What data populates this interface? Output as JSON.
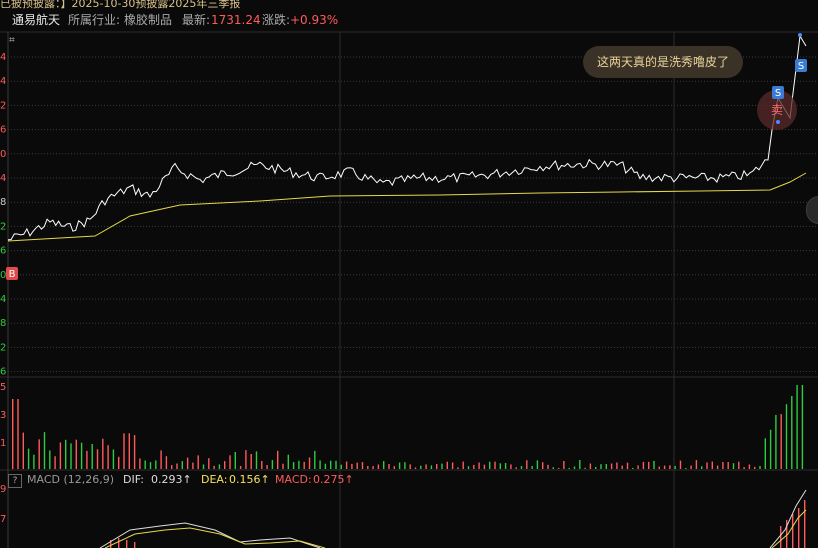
{
  "banner": "已披预披露：】2025-10-30预披露2025年三季报",
  "stock": {
    "name": "通易航天",
    "industry_label": "所属行业:",
    "industry": "橡胶制品",
    "latest_label": "最新:",
    "latest": "1731.24",
    "change_label": "涨跌:",
    "change": "+0.93%"
  },
  "price_axis_labels": [
    "4",
    "4",
    "2",
    "6",
    "0",
    "4",
    "8",
    "2",
    "6",
    "0",
    "4",
    "8",
    "2",
    "6"
  ],
  "volume_axis_labels": [
    "5",
    "3",
    "1"
  ],
  "macd_axis_labels": [
    "9",
    "7"
  ],
  "tooltip": "这两天真的是洗秀噜皮了",
  "markers": {
    "buy": "B",
    "sell": "S",
    "sell_hover": "卖"
  },
  "macd": {
    "help": "?",
    "title": "MACD (12,26,9)",
    "dif_label": "DIF:",
    "dif": "0.293↑",
    "dea_label": "DEA:",
    "dea": "0.156↑",
    "macd_label": "MACD:",
    "macd": "0.275↑"
  },
  "colors": {
    "up": "#ff5b5b",
    "down": "#2ecc40",
    "price_line": "#ffffff",
    "avg_line": "#e6d84a",
    "grid": "#3a3a3a"
  }
}
